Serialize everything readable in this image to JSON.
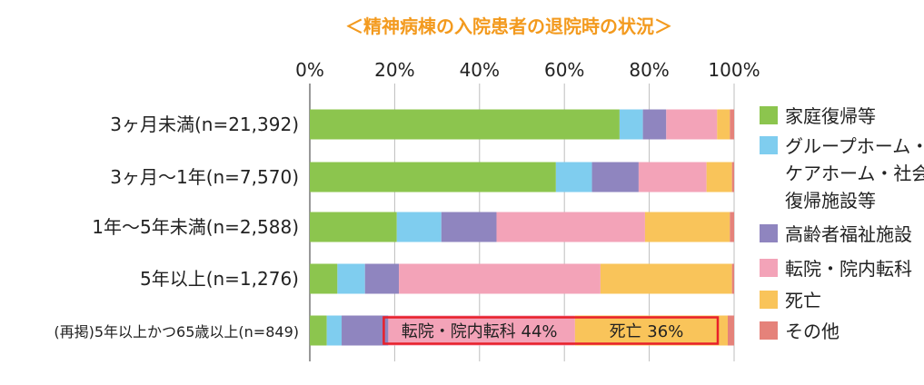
{
  "chart_data": {
    "type": "bar",
    "orientation": "horizontal",
    "stacked": true,
    "percent": true,
    "title": "＜精神病棟の入院患者の退院時の状況＞",
    "xlim": [
      0,
      100
    ],
    "xticks": [
      "0%",
      "20%",
      "40%",
      "60%",
      "80%",
      "100%"
    ],
    "grid": true,
    "legend_position": "right",
    "categories": [
      "3ヶ月未満(n=21,392)",
      "3ヶ月〜1年(n=7,570)",
      "1年〜5年未満(n=2,588)",
      "5年以上(n=1,276)",
      "(再掲)5年以上かつ65歳以上(n=849)"
    ],
    "series": [
      {
        "name": "家庭復帰等",
        "color": "#8cc54e",
        "values": [
          73,
          58,
          20.5,
          6.5,
          4
        ]
      },
      {
        "name": "グループホーム・ケアホーム・社会復帰施設等",
        "color": "#7fcdef",
        "values": [
          5.5,
          8.5,
          10.5,
          6.5,
          3.5
        ]
      },
      {
        "name": "高齢者福祉施設",
        "color": "#8f85bf",
        "values": [
          5.5,
          11,
          13,
          8,
          11
        ]
      },
      {
        "name": "転院・院内転科",
        "color": "#f3a3b8",
        "values": [
          12,
          16,
          35,
          47.5,
          44
        ]
      },
      {
        "name": "死亡",
        "color": "#f9c45a",
        "values": [
          3,
          6,
          20,
          31,
          36
        ]
      },
      {
        "name": "その他",
        "color": "#e5827a",
        "values": [
          1,
          0.5,
          1,
          0.5,
          1.5
        ]
      }
    ],
    "legend_lines": [
      [
        "家庭復帰等"
      ],
      [
        "グループホーム・",
        "ケアホーム・社会",
        "復帰施設等"
      ],
      [
        "高齢者福祉施設"
      ],
      [
        "転院・院内転科"
      ],
      [
        "死亡"
      ],
      [
        "その他"
      ]
    ],
    "annotations": [
      {
        "row": 4,
        "segments": [
          3,
          4
        ],
        "texts": [
          "転院・院内転科 44%",
          "死亡 36%"
        ],
        "box_color": "#e8202a"
      }
    ]
  }
}
